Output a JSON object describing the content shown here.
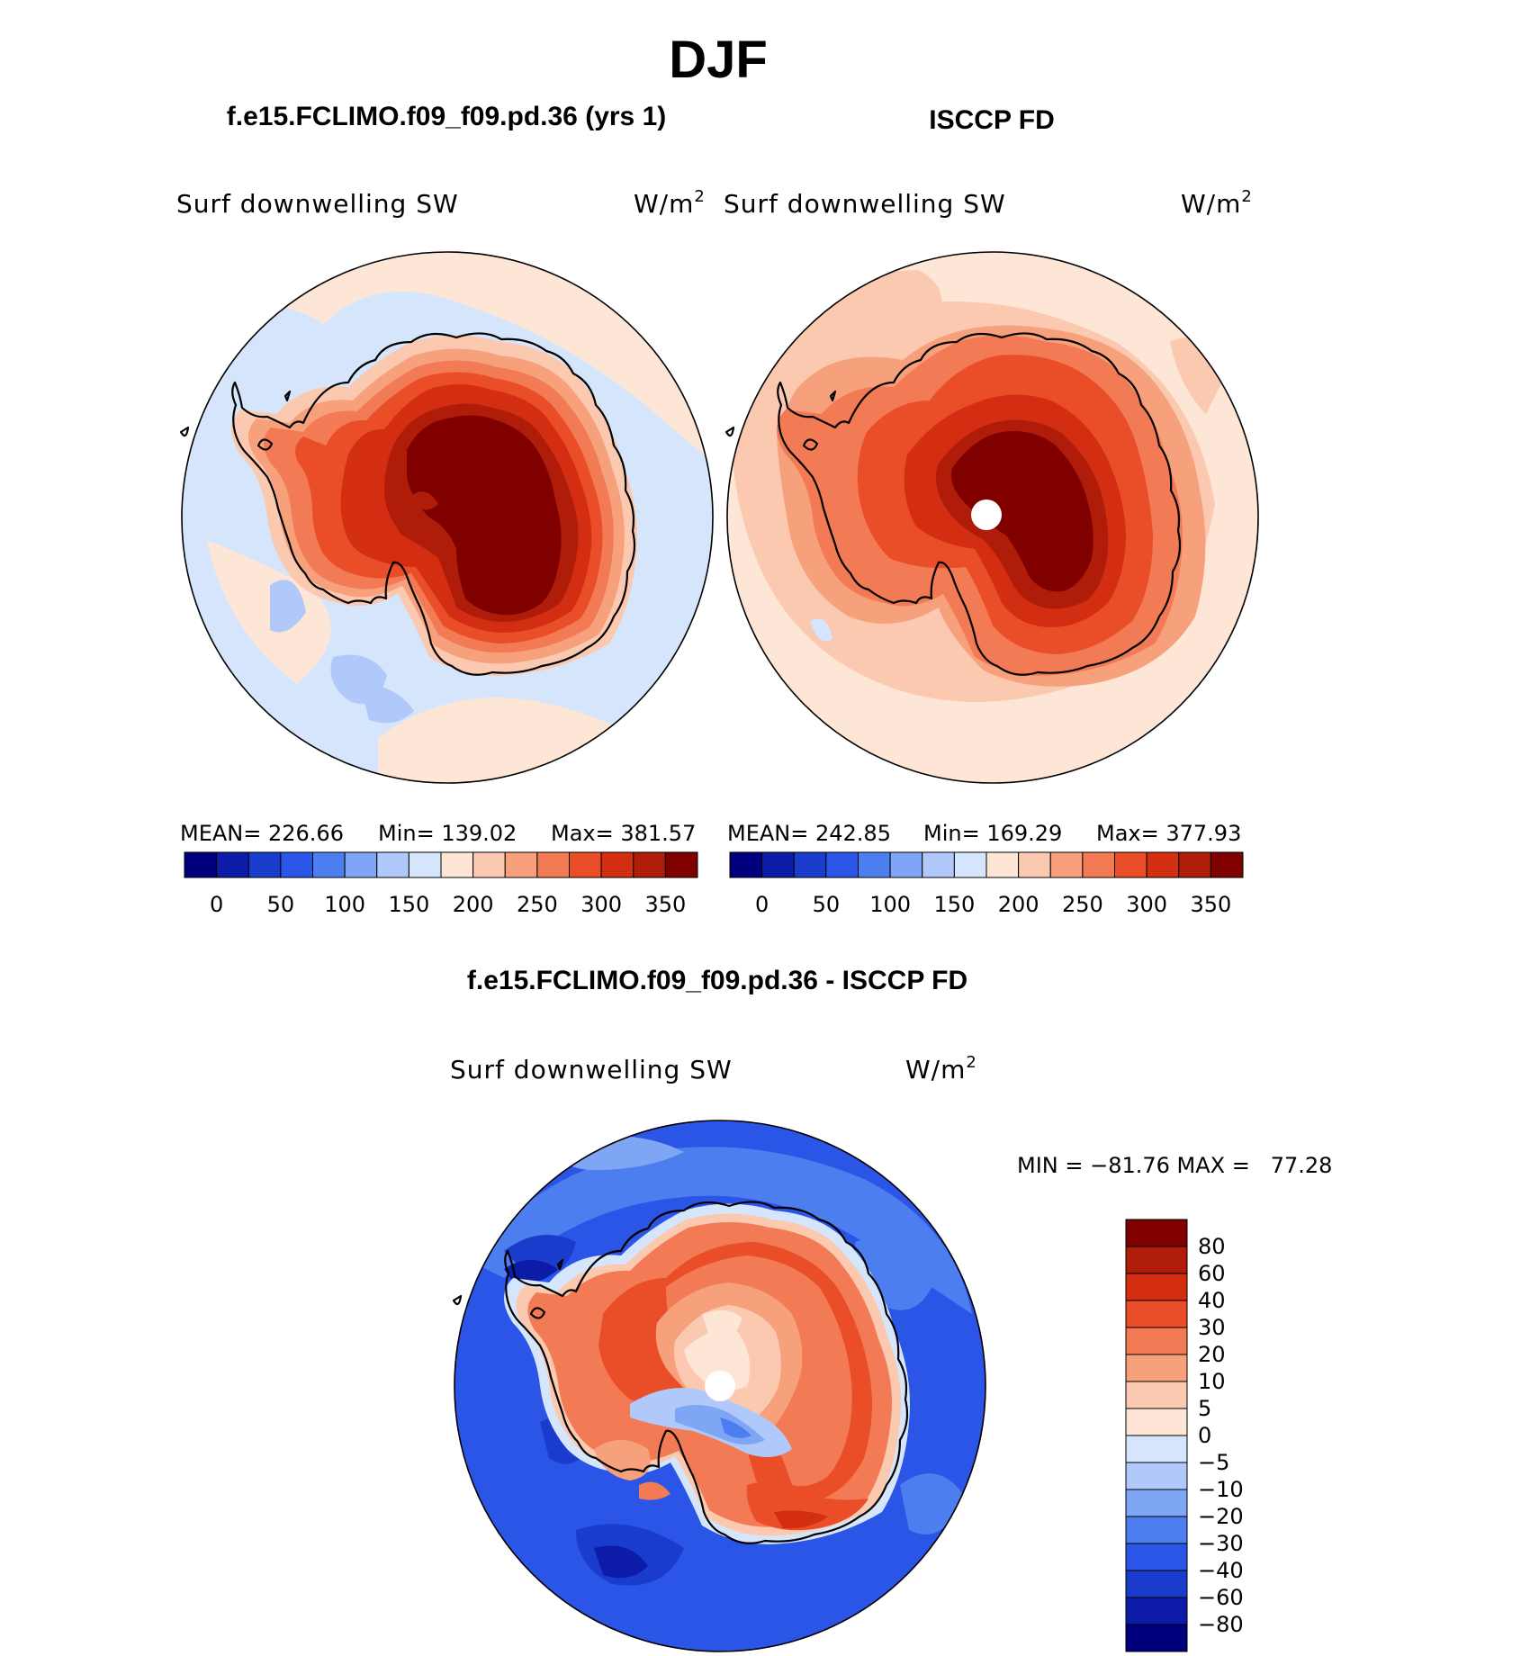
{
  "figure": {
    "title": "DJF",
    "diff_title": "f.e15.FCLIMO.f09_f09.pd.36 - ISCCP FD"
  },
  "panels": [
    {
      "id": "model",
      "title": "f.e15.FCLIMO.f09_f09.pd.36 (yrs 1)",
      "variable": "Surf downwelling SW",
      "units": "W/m",
      "units_sup": "2",
      "stats": {
        "mean": "MEAN= 226.66",
        "min": "Min= 139.02",
        "max": "Max= 381.57"
      }
    },
    {
      "id": "obs",
      "title": "ISCCP FD",
      "variable": "Surf downwelling SW",
      "units": "W/m",
      "units_sup": "2",
      "stats": {
        "mean": "MEAN= 242.85",
        "min": "Min= 169.29",
        "max": "Max= 377.93"
      }
    },
    {
      "id": "diff",
      "variable": "Surf downwelling SW",
      "units": "W/m",
      "units_sup": "2",
      "stats": {
        "minmax": "MIN = −81.76 MAX =   77.28"
      }
    }
  ],
  "colorbar_abs": {
    "colors": [
      "#00007f",
      "#0d1ca8",
      "#1a3ccd",
      "#2b55e6",
      "#4d7ef0",
      "#7fa6f5",
      "#b0c8fa",
      "#d5e6fc",
      "#fde6d6",
      "#fbc8b0",
      "#f7a07c",
      "#f27a55",
      "#ea4e29",
      "#d42e12",
      "#b01c0a",
      "#800000"
    ],
    "ticks": [
      "0",
      "50",
      "100",
      "150",
      "200",
      "250",
      "300",
      "350"
    ]
  },
  "colorbar_diff": {
    "colors": [
      "#00007f",
      "#0d1ca8",
      "#1a3ccd",
      "#2b55e6",
      "#4d7ef0",
      "#7fa6f5",
      "#b0c8fa",
      "#d5e6fc",
      "#fde6d6",
      "#fbc8b0",
      "#f7a07c",
      "#f27a55",
      "#ea4e29",
      "#d42e12",
      "#b01c0a",
      "#800000"
    ],
    "ticks": [
      "80",
      "60",
      "40",
      "30",
      "20",
      "10",
      "5",
      "0",
      "−5",
      "−10",
      "−20",
      "−30",
      "−40",
      "−60",
      "−80"
    ]
  },
  "map_colors": {
    "ocean_model": "#d5e6fc",
    "ocean_model_warm": "#fde6d6",
    "ocean_model_cool": "#b0c8fa",
    "ocean_obs": "#fde6d6",
    "ocean_obs_warm": "#fbc8b0",
    "ocean_diff": "#2b55e6",
    "ocean_diff_dark": "#1a3ccd",
    "ocean_diff_light": "#4d7ef0",
    "pole_hole": "#ffffff"
  }
}
